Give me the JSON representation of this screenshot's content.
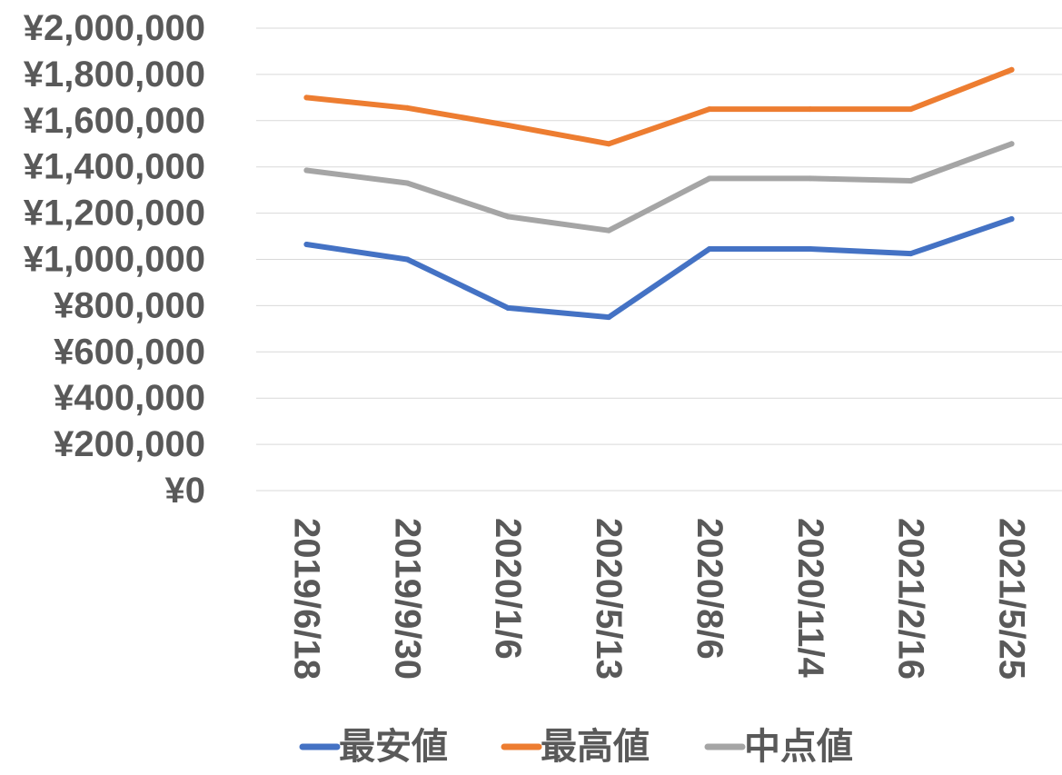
{
  "chart_data": {
    "type": "line",
    "categories": [
      "2019/6/18",
      "2019/9/30",
      "2020/1/6",
      "2020/5/13",
      "2020/8/6",
      "2020/11/4",
      "2021/2/16",
      "2021/5/25"
    ],
    "series": [
      {
        "name": "最安値",
        "color": "#4472c4",
        "values": [
          1065000,
          1000000,
          790000,
          750000,
          1045000,
          1045000,
          1025000,
          1175000
        ]
      },
      {
        "name": "最高値",
        "color": "#ed7d31",
        "values": [
          1700000,
          1655000,
          1580000,
          1500000,
          1650000,
          1650000,
          1650000,
          1820000
        ]
      },
      {
        "name": "中点値",
        "color": "#a5a5a5",
        "values": [
          1385000,
          1330000,
          1185000,
          1125000,
          1350000,
          1350000,
          1340000,
          1500000
        ]
      }
    ],
    "y_ticks": [
      "¥0",
      "¥200,000",
      "¥400,000",
      "¥600,000",
      "¥800,000",
      "¥1,000,000",
      "¥1,200,000",
      "¥1,400,000",
      "¥1,600,000",
      "¥1,800,000",
      "¥2,000,000"
    ],
    "ylim": [
      0,
      2000000
    ],
    "y_step": 200000,
    "grid": true,
    "legend_position": "bottom"
  }
}
